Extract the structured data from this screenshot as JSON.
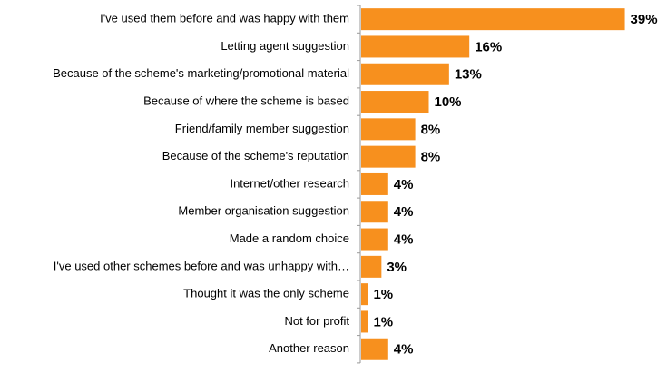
{
  "chart_data": {
    "type": "bar",
    "orientation": "horizontal",
    "categories": [
      "I've used them before and was happy with them",
      "Letting agent suggestion",
      "Because of the scheme's marketing/promotional material",
      "Because of where the scheme is based",
      "Friend/family member suggestion",
      "Because of the scheme's reputation",
      "Internet/other research",
      "Member organisation suggestion",
      "Made a random choice",
      "I've used other schemes before and was unhappy with…",
      "Thought it was the only scheme",
      "Not for profit",
      "Another reason"
    ],
    "values": [
      39,
      16,
      13,
      10,
      8,
      8,
      4,
      4,
      4,
      3,
      1,
      1,
      4
    ],
    "value_labels": [
      "39%",
      "16%",
      "13%",
      "10%",
      "8%",
      "8%",
      "4%",
      "4%",
      "4%",
      "3%",
      "1%",
      "1%",
      "4%"
    ],
    "color": "#f7901e"
  }
}
